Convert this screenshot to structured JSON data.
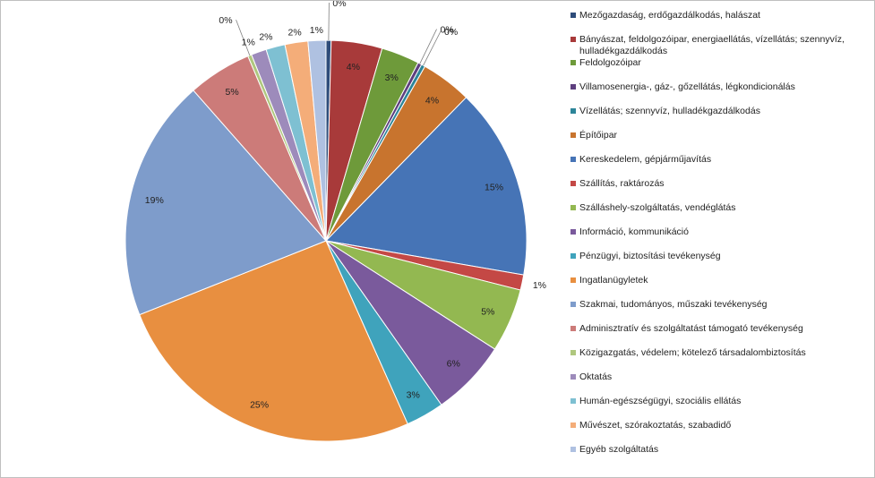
{
  "chart_data": {
    "type": "pie",
    "title": "",
    "legend_position": "right",
    "slices": [
      {
        "label": "Mezőgazdaság, erdőgazdálkodás, halászat",
        "value": 0.4,
        "display": "0%",
        "color": "#2E4C7A"
      },
      {
        "label": "Bányászat, feldolgozóipar, energiaellátás, vízellátás; szennyvíz, hulladékgazdálkodás",
        "value": 4,
        "display": "4%",
        "color": "#A83A3A"
      },
      {
        "label": "Feldolgozóipar",
        "value": 3,
        "display": "3%",
        "color": "#6E9A3A"
      },
      {
        "label": "Villamosenergia-, gáz-, gőzellátás, légkondicionálás",
        "value": 0.3,
        "display": "0%",
        "color": "#5E3F7F"
      },
      {
        "label": "Vízellátás; szennyvíz, hulladékgazdálkodás",
        "value": 0.3,
        "display": "0%",
        "color": "#2D8599"
      },
      {
        "label": "Építőipar",
        "value": 4,
        "display": "4%",
        "color": "#C8742E"
      },
      {
        "label": "Kereskedelem, gépjárműjavítás",
        "value": 15,
        "display": "15%",
        "color": "#4674B6"
      },
      {
        "label": "Szállítás, raktározás",
        "value": 1.2,
        "display": "1%",
        "color": "#C44845"
      },
      {
        "label": "Szálláshely-szolgáltatás, vendéglátás",
        "value": 5,
        "display": "5%",
        "color": "#93B851"
      },
      {
        "label": "Információ, kommunikáció",
        "value": 6,
        "display": "6%",
        "color": "#7A5A9C"
      },
      {
        "label": "Pénzügyi, biztosítási tevékenység",
        "value": 3,
        "display": "3%",
        "color": "#3FA3BC"
      },
      {
        "label": "Ingatlanügyletek",
        "value": 25,
        "display": "25%",
        "color": "#E88F40"
      },
      {
        "label": "Szakmai, tudományos, műszaki tevékenység",
        "value": 19,
        "display": "19%",
        "color": "#7E9CCB"
      },
      {
        "label": "Adminisztratív és szolgáltatást támogató tevékenység",
        "value": 5,
        "display": "5%",
        "color": "#CC7B79"
      },
      {
        "label": "Közigazgatás, védelem; kötelező társadalombiztosítás",
        "value": 0.3,
        "display": "0%",
        "color": "#AFC77E"
      },
      {
        "label": "Oktatás",
        "value": 1.2,
        "display": "1%",
        "color": "#9D8BBB"
      },
      {
        "label": "Humán-egészségügyi, szociális ellátás",
        "value": 1.5,
        "display": "2%",
        "color": "#7EC0D2"
      },
      {
        "label": "Művészet, szórakoztatás, szabadidő",
        "value": 1.8,
        "display": "2%",
        "color": "#F4AD79"
      },
      {
        "label": "Egyéb szolgáltatás",
        "value": 1.4,
        "display": "1%",
        "color": "#AFC1E1"
      }
    ]
  }
}
